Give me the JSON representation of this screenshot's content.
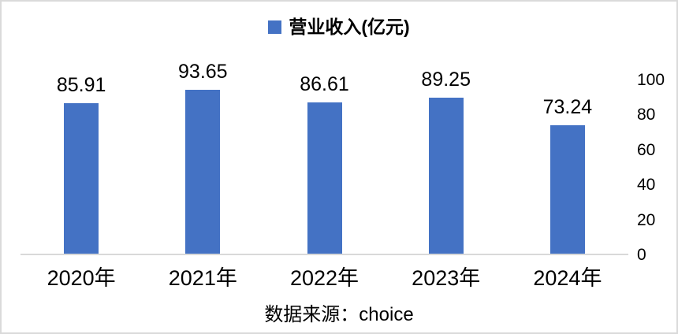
{
  "chart_data": {
    "type": "bar",
    "title": "",
    "categories": [
      "2020年",
      "2021年",
      "2022年",
      "2023年",
      "2024年"
    ],
    "series": [
      {
        "name": "营业收入(亿元)",
        "values": [
          85.91,
          93.65,
          86.61,
          89.25,
          73.24
        ]
      }
    ],
    "value_labels": [
      "85.91",
      "93.65",
      "86.61",
      "89.25",
      "73.24"
    ],
    "y_axis": {
      "position": "right",
      "ticks": [
        0,
        20,
        40,
        60,
        80,
        100
      ],
      "ylim": [
        0,
        100
      ]
    },
    "legend_position": "top",
    "grid": false,
    "bar_color": "#4472C4",
    "axis_line_color": "#D9D9D9",
    "source_note": "数据来源：choice"
  }
}
